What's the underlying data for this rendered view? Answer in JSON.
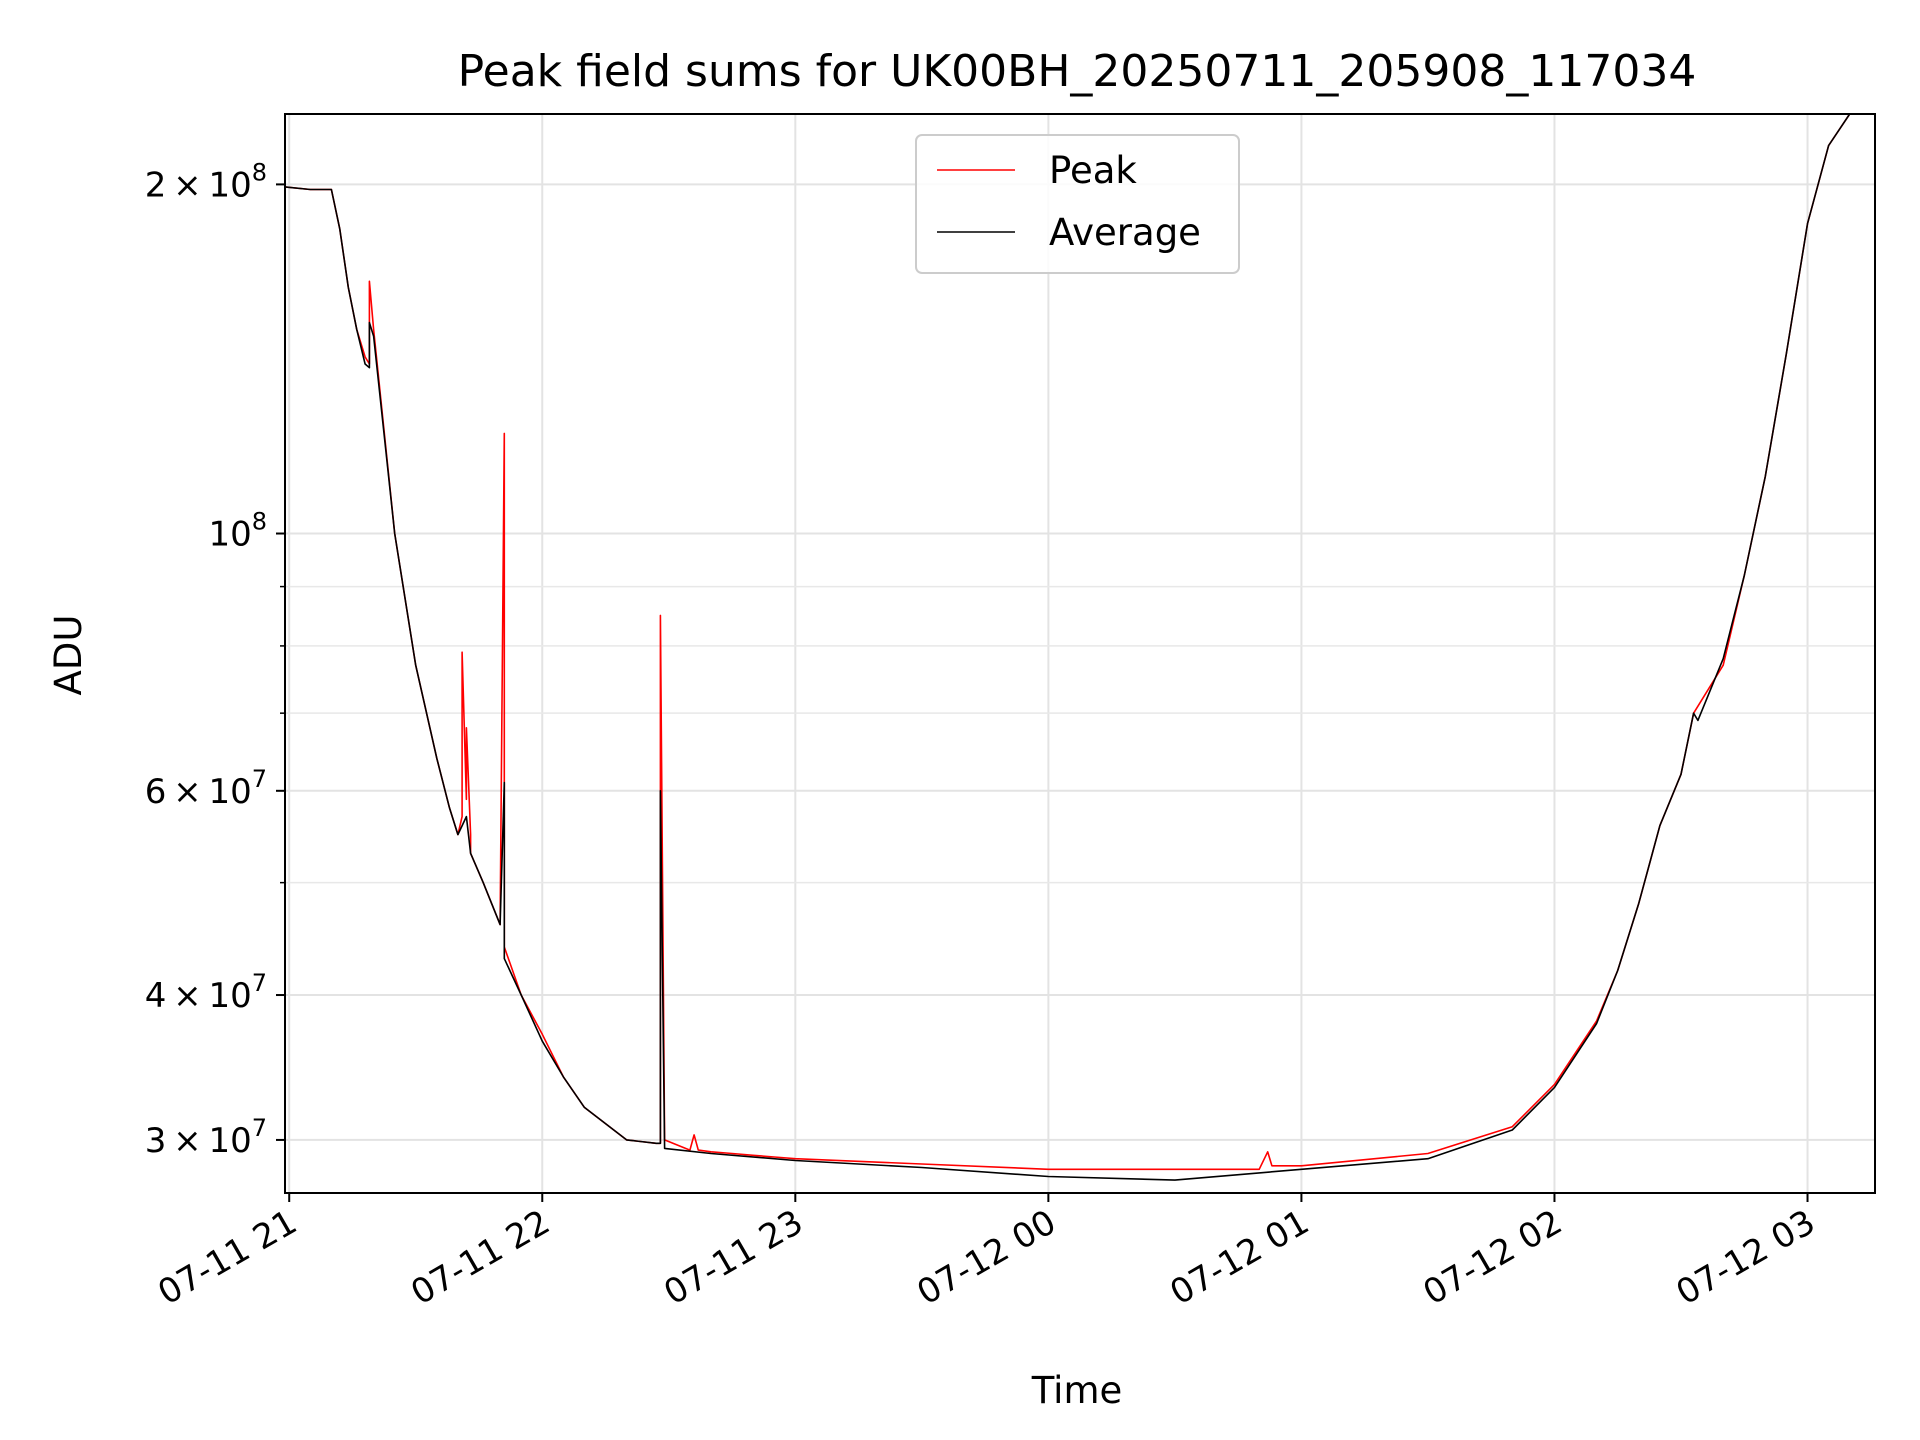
{
  "chart_data": {
    "type": "line",
    "title": "Peak field sums for UK00BH_20250711_205908_117034",
    "xlabel": "Time",
    "ylabel": "ADU",
    "yscale": "log",
    "xlim": [
      "2025-07-11 20:59",
      "2025-07-12 03:16"
    ],
    "ylim": [
      27000000,
      230000000
    ],
    "x_ticks": [
      {
        "t": "2025-07-11 21:00",
        "label": "07-11 21"
      },
      {
        "t": "2025-07-11 22:00",
        "label": "07-11 22"
      },
      {
        "t": "2025-07-11 23:00",
        "label": "07-11 23"
      },
      {
        "t": "2025-07-12 00:00",
        "label": "07-12 00"
      },
      {
        "t": "2025-07-12 01:00",
        "label": "07-12 01"
      },
      {
        "t": "2025-07-12 02:00",
        "label": "07-12 02"
      },
      {
        "t": "2025-07-12 03:00",
        "label": "07-12 03"
      }
    ],
    "y_ticks": [
      {
        "value": 30000000,
        "base": "3 × 10",
        "exp": "7"
      },
      {
        "value": 40000000,
        "base": "4 × 10",
        "exp": "7"
      },
      {
        "value": 60000000,
        "base": "6 × 10",
        "exp": "7"
      },
      {
        "value": 100000000,
        "base": "10",
        "exp": "8"
      },
      {
        "value": 200000000,
        "base": "2 × 10",
        "exp": "8"
      }
    ],
    "y_minor_ticks": [
      50000000,
      70000000,
      80000000,
      90000000
    ],
    "grid": true,
    "legend_position": "upper-center",
    "series": [
      {
        "name": "Peak",
        "color": "#ff0000",
        "x": [
          "2025-07-11 20:59",
          "2025-07-11 21:05",
          "2025-07-11 21:10",
          "2025-07-11 21:12",
          "2025-07-11 21:14",
          "2025-07-11 21:16",
          "2025-07-11 21:18",
          "2025-07-11 21:19",
          "2025-07-11 21:19",
          "2025-07-11 21:20",
          "2025-07-11 21:25",
          "2025-07-11 21:30",
          "2025-07-11 21:35",
          "2025-07-11 21:38",
          "2025-07-11 21:40",
          "2025-07-11 21:41",
          "2025-07-11 21:41",
          "2025-07-11 21:42",
          "2025-07-11 21:42",
          "2025-07-11 21:43",
          "2025-07-11 21:43",
          "2025-07-11 21:46",
          "2025-07-11 21:50",
          "2025-07-11 21:50",
          "2025-07-11 21:51",
          "2025-07-11 21:51",
          "2025-07-11 21:55",
          "2025-07-11 22:00",
          "2025-07-11 22:05",
          "2025-07-11 22:10",
          "2025-07-11 22:20",
          "2025-07-11 22:27",
          "2025-07-11 22:28",
          "2025-07-11 22:28",
          "2025-07-11 22:29",
          "2025-07-11 22:35",
          "2025-07-11 22:36",
          "2025-07-11 22:37",
          "2025-07-11 22:40",
          "2025-07-11 22:45",
          "2025-07-11 22:50",
          "2025-07-11 22:55",
          "2025-07-11 23:00",
          "2025-07-11 23:30",
          "2025-07-12 00:00",
          "2025-07-12 00:30",
          "2025-07-12 00:50",
          "2025-07-12 00:52",
          "2025-07-12 00:53",
          "2025-07-12 01:00",
          "2025-07-12 01:30",
          "2025-07-12 01:50",
          "2025-07-12 02:00",
          "2025-07-12 02:10",
          "2025-07-12 02:15",
          "2025-07-12 02:20",
          "2025-07-12 02:25",
          "2025-07-12 02:30",
          "2025-07-12 02:33",
          "2025-07-12 02:40",
          "2025-07-12 02:45",
          "2025-07-12 02:50",
          "2025-07-12 02:55",
          "2025-07-12 03:00",
          "2025-07-12 03:05",
          "2025-07-12 03:10",
          "2025-07-12 03:16"
        ],
        "y": [
          199000000,
          198000000,
          198000000,
          183000000,
          163000000,
          150000000,
          142000000,
          140000000,
          165000000,
          150000000,
          100000000,
          77000000,
          64000000,
          58000000,
          55000000,
          57000000,
          79000000,
          59000000,
          68000000,
          55000000,
          53000000,
          50000000,
          46000000,
          46000000,
          122000000,
          44000000,
          40000000,
          37000000,
          34000000,
          32000000,
          30000000,
          29800000,
          29800000,
          85000000,
          30000000,
          29400000,
          30300000,
          29400000,
          29300000,
          29200000,
          29100000,
          29000000,
          28900000,
          28600000,
          28300000,
          28300000,
          28300000,
          29300000,
          28500000,
          28500000,
          29200000,
          30800000,
          33500000,
          38000000,
          42000000,
          48000000,
          56000000,
          62000000,
          70000000,
          77000000,
          92000000,
          112000000,
          143000000,
          185000000,
          216000000,
          230000000,
          230000000
        ]
      },
      {
        "name": "Average",
        "color": "#000000",
        "x": [
          "2025-07-11 20:59",
          "2025-07-11 21:05",
          "2025-07-11 21:10",
          "2025-07-11 21:12",
          "2025-07-11 21:14",
          "2025-07-11 21:16",
          "2025-07-11 21:18",
          "2025-07-11 21:19",
          "2025-07-11 21:19",
          "2025-07-11 21:20",
          "2025-07-11 21:25",
          "2025-07-11 21:30",
          "2025-07-11 21:35",
          "2025-07-11 21:38",
          "2025-07-11 21:40",
          "2025-07-11 21:42",
          "2025-07-11 21:43",
          "2025-07-11 21:46",
          "2025-07-11 21:50",
          "2025-07-11 21:50",
          "2025-07-11 21:51",
          "2025-07-11 21:51",
          "2025-07-11 21:55",
          "2025-07-11 22:00",
          "2025-07-11 22:05",
          "2025-07-11 22:10",
          "2025-07-11 22:20",
          "2025-07-11 22:27",
          "2025-07-11 22:28",
          "2025-07-11 22:28",
          "2025-07-11 22:29",
          "2025-07-11 22:40",
          "2025-07-11 23:00",
          "2025-07-11 23:30",
          "2025-07-12 00:00",
          "2025-07-12 00:30",
          "2025-07-12 01:00",
          "2025-07-12 01:30",
          "2025-07-12 01:50",
          "2025-07-12 02:00",
          "2025-07-12 02:10",
          "2025-07-12 02:15",
          "2025-07-12 02:20",
          "2025-07-12 02:25",
          "2025-07-12 02:30",
          "2025-07-12 02:33",
          "2025-07-12 02:34",
          "2025-07-12 02:40",
          "2025-07-12 02:45",
          "2025-07-12 02:50",
          "2025-07-12 02:55",
          "2025-07-12 03:00",
          "2025-07-12 03:05",
          "2025-07-12 03:10",
          "2025-07-12 03:16"
        ],
        "y": [
          199000000,
          198000000,
          198000000,
          183000000,
          163000000,
          150000000,
          140000000,
          139000000,
          152000000,
          148000000,
          100000000,
          77000000,
          64000000,
          58000000,
          55000000,
          57000000,
          53000000,
          50000000,
          46000000,
          46000000,
          61000000,
          43000000,
          40000000,
          36500000,
          34000000,
          32000000,
          30000000,
          29800000,
          29800000,
          60000000,
          29500000,
          29200000,
          28800000,
          28400000,
          27900000,
          27700000,
          28300000,
          28900000,
          30600000,
          33300000,
          37800000,
          42000000,
          48000000,
          56000000,
          62000000,
          70000000,
          69000000,
          78000000,
          92000000,
          112000000,
          143000000,
          185000000,
          216000000,
          230000000,
          230000000
        ]
      }
    ]
  }
}
